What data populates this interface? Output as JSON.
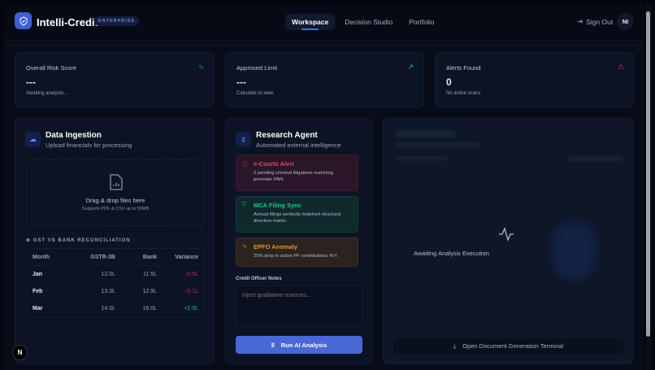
{
  "header": {
    "brand": "Intelli-Credit",
    "badge": "ENTERPRISE",
    "nav": [
      "Workspace",
      "Decision Studio",
      "Portfolio"
    ],
    "active_nav": "Workspace",
    "sign_out": "Sign Out",
    "avatar": "NI"
  },
  "stats": [
    {
      "label": "Overall Risk Score",
      "value": "---",
      "sub": "Awaiting analysis...",
      "icon": "activity-icon",
      "color": "#4a6be0"
    },
    {
      "label": "Approved Limit",
      "value": "---",
      "sub": "Calculate to view",
      "icon": "trending-up-icon",
      "color": "#22c38e"
    },
    {
      "label": "Alerts Found",
      "value": "0",
      "sub": "No active scans",
      "icon": "alert-triangle-icon",
      "color": "#e0314f"
    }
  ],
  "ingestion": {
    "title": "Data Ingestion",
    "subtitle": "Upload financials for processing",
    "drop_title": "Drag & drop files here",
    "drop_sub": "Supports PDF & CSV up to 50MB",
    "recon_title": "GST VS BANK RECONCILIATION",
    "columns": [
      "Month",
      "GSTR-3B",
      "Bank",
      "Variance"
    ],
    "rows": [
      [
        "Jan",
        "12.0L",
        "11.5L",
        "-0.5L"
      ],
      [
        "Feb",
        "13.0L",
        "12.9L",
        "-0.1L"
      ],
      [
        "Mar",
        "14.0L",
        "16.0L",
        "+2.0L"
      ]
    ]
  },
  "research": {
    "title": "Research Agent",
    "subtitle": "Automated external intelligence",
    "alerts": [
      {
        "title": "e-Courts Alert",
        "desc": "2 pending criminal litigations matching promoter PAN.",
        "color": "#e0456a"
      },
      {
        "title": "MCA Filing Sync",
        "desc": "Annual filings perfectly matched structural directors matrix.",
        "color": "#22c38e"
      },
      {
        "title": "EPFO Anomaly",
        "desc": "20% drop in active PF contributions YoY.",
        "color": "#e8962a"
      }
    ],
    "notes_label": "Credit Officer Notes",
    "notes_placeholder": "Inject qualitative nuances...",
    "run_label": "Run AI Analysis"
  },
  "analysis": {
    "awaiting": "Awaiting Analysis Execution",
    "terminal_label": "Open Document Generation Terminal"
  }
}
